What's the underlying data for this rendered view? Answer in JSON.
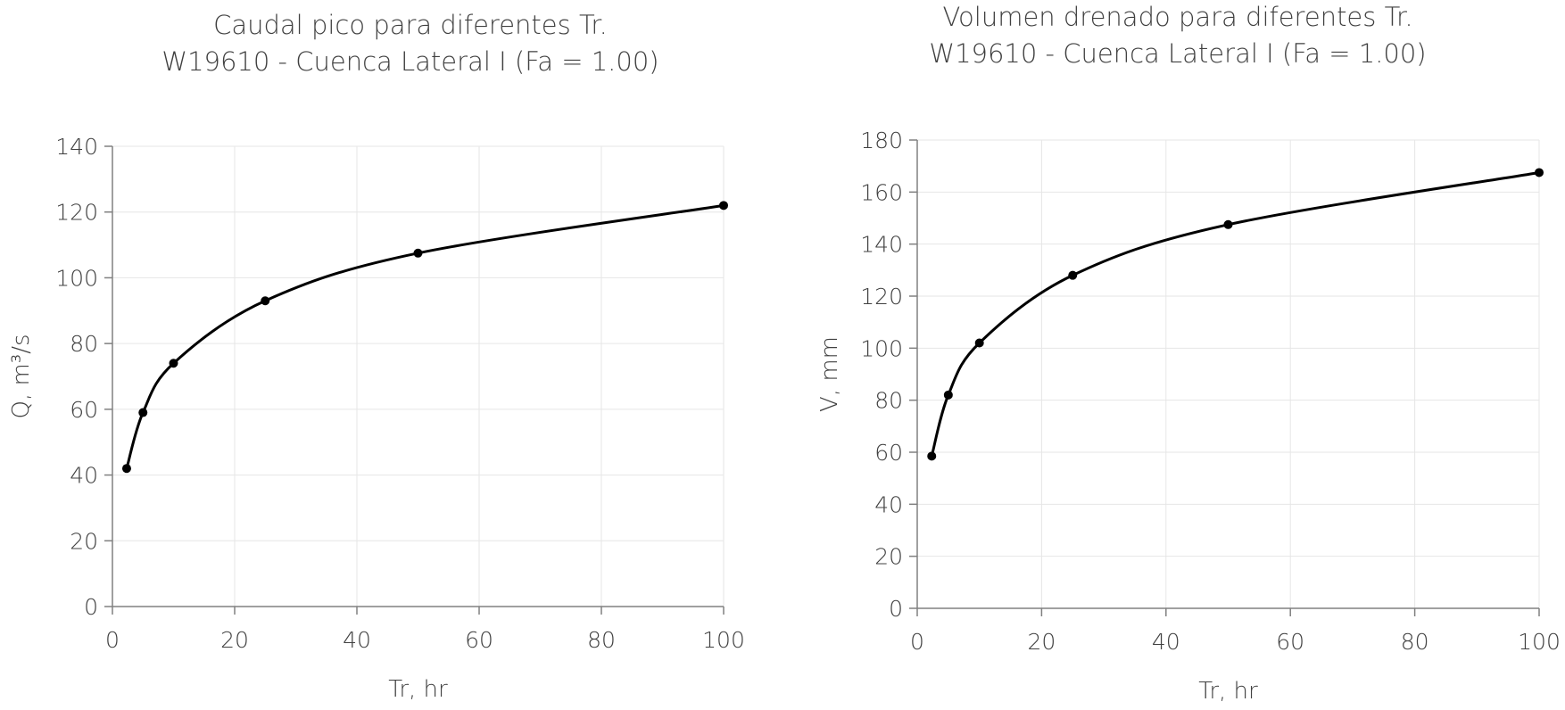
{
  "chart_data": [
    {
      "type": "line",
      "title_line1": "Caudal pico para diferentes Tr.",
      "title_line2": "W19610 - Cuenca Lateral I (Fa = 1.00)",
      "xlabel": "Tr, hr",
      "ylabel": "Q, m³/s",
      "xlim": [
        0,
        100
      ],
      "ylim": [
        0,
        140
      ],
      "xticks": [
        0,
        20,
        40,
        60,
        80,
        100
      ],
      "yticks": [
        0,
        20,
        40,
        60,
        80,
        100,
        120,
        140
      ],
      "grid": true,
      "smooth": true,
      "x": [
        2.33,
        5,
        10,
        25,
        50,
        100
      ],
      "y": [
        42,
        59,
        74,
        93,
        107.5,
        122
      ]
    },
    {
      "type": "line",
      "title_line1": "Volumen drenado para diferentes Tr.",
      "title_line2": "W19610 - Cuenca Lateral I (Fa = 1.00)",
      "xlabel": "Tr, hr",
      "ylabel": "V, mm",
      "xlim": [
        0,
        100
      ],
      "ylim": [
        0,
        180
      ],
      "xticks": [
        0,
        20,
        40,
        60,
        80,
        100
      ],
      "yticks": [
        0,
        20,
        40,
        60,
        80,
        100,
        120,
        140,
        160,
        180
      ],
      "grid": true,
      "smooth": true,
      "x": [
        2.33,
        5,
        10,
        25,
        50,
        100
      ],
      "y": [
        58.5,
        82,
        102,
        128,
        147.5,
        167.5
      ]
    }
  ],
  "colors": {
    "line": "#000000",
    "axis": "#808080",
    "grid": "#e6e6e6",
    "text": "#404040"
  }
}
